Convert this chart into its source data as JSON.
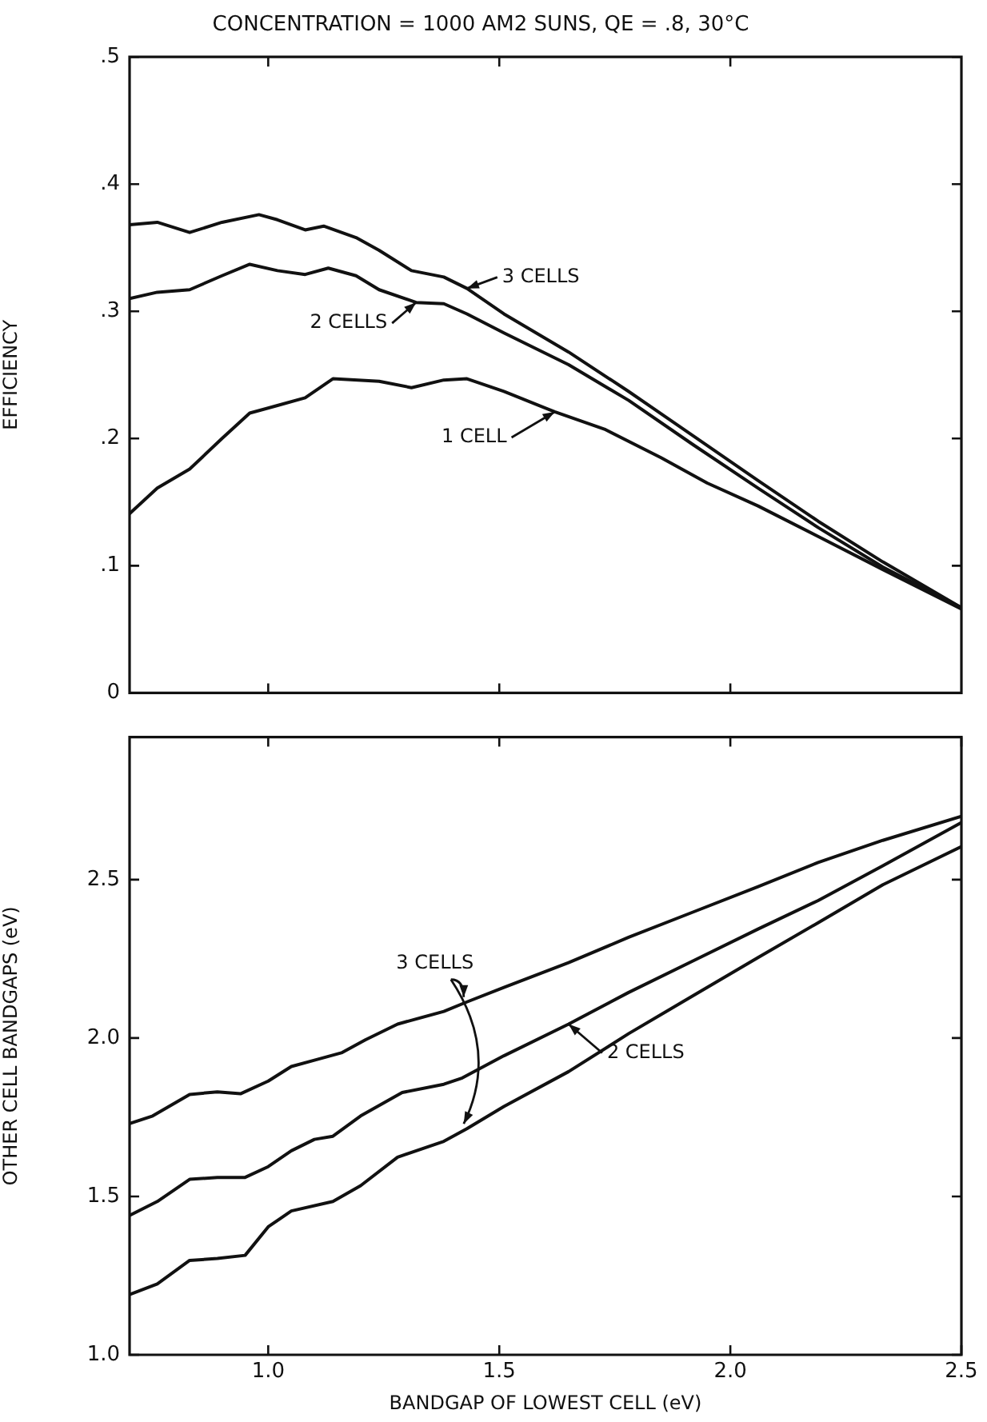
{
  "chart_data": [
    {
      "type": "line",
      "title": "CONCENTRATION = 1000 AM2 SUNS, QE = .8, 30°C",
      "ylabel": "EFFICIENCY",
      "xlim": [
        0.7,
        2.5
      ],
      "xticks": [
        1,
        1.5,
        2
      ],
      "ylim": [
        0,
        0.5
      ],
      "yticks": [
        {
          "value": 0,
          "label": "0"
        },
        {
          "value": 0.1,
          "label": ".1"
        },
        {
          "value": 0.2,
          "label": ".2"
        },
        {
          "value": 0.3,
          "label": ".3"
        },
        {
          "value": 0.4,
          "label": ".4"
        },
        {
          "value": 0.5,
          "label": ".5"
        }
      ],
      "tick_labels": "y",
      "grid": false,
      "legend": false,
      "marker": "none",
      "line_style": "solid",
      "annotations": [
        {
          "text": "3 CELLS",
          "x": 1.43,
          "y": 0.318
        },
        {
          "text": "2 CELLS",
          "x": 1.32,
          "y": 0.307
        },
        {
          "text": "1 CELL",
          "x": 1.62,
          "y": 0.221
        }
      ],
      "series": [
        {
          "color": "#111111",
          "x": [
            0.7,
            0.76,
            0.83,
            0.9,
            0.98,
            1.02,
            1.08,
            1.12,
            1.19,
            1.24,
            1.31,
            1.38,
            1.43,
            1.51,
            1.65,
            1.78,
            1.92,
            2.06,
            2.19,
            2.33,
            2.5
          ],
          "values": [
            0.368,
            0.37,
            0.362,
            0.37,
            0.376,
            0.372,
            0.364,
            0.367,
            0.358,
            0.348,
            0.332,
            0.327,
            0.318,
            0.298,
            0.268,
            0.237,
            0.202,
            0.167,
            0.135,
            0.103,
            0.067
          ]
        },
        {
          "color": "#111111",
          "x": [
            0.7,
            0.76,
            0.83,
            0.9,
            0.96,
            1.02,
            1.08,
            1.13,
            1.19,
            1.24,
            1.32,
            1.38,
            1.43,
            1.51,
            1.65,
            1.78,
            1.92,
            2.06,
            2.19,
            2.33,
            2.5
          ],
          "values": [
            0.31,
            0.315,
            0.317,
            0.328,
            0.337,
            0.332,
            0.329,
            0.334,
            0.328,
            0.317,
            0.307,
            0.306,
            0.298,
            0.283,
            0.258,
            0.23,
            0.195,
            0.161,
            0.13,
            0.099,
            0.067
          ]
        },
        {
          "color": "#111111",
          "x": [
            0.7,
            0.76,
            0.83,
            0.9,
            0.96,
            1.02,
            1.08,
            1.14,
            1.24,
            1.31,
            1.38,
            1.43,
            1.51,
            1.62,
            1.73,
            1.85,
            1.95,
            2.06,
            2.19,
            2.33,
            2.5
          ],
          "values": [
            0.141,
            0.161,
            0.176,
            0.2,
            0.22,
            0.226,
            0.232,
            0.247,
            0.245,
            0.24,
            0.246,
            0.247,
            0.237,
            0.221,
            0.207,
            0.185,
            0.165,
            0.147,
            0.123,
            0.097,
            0.066
          ]
        }
      ]
    },
    {
      "type": "line",
      "xlabel": "BANDGAP OF LOWEST CELL (eV)",
      "ylabel": "OTHER CELL BANDGAPS (eV)",
      "xlim": [
        0.7,
        2.5
      ],
      "xticks": [
        {
          "value": 1,
          "label": "1.0"
        },
        1.5,
        {
          "value": 2,
          "label": "2.0"
        },
        2.5
      ],
      "ylim": [
        1,
        2.95
      ],
      "yticks": [
        {
          "value": 1,
          "label": "1.0"
        },
        1.5,
        {
          "value": 2,
          "label": "2.0"
        },
        2.5
      ],
      "grid": false,
      "legend": false,
      "marker": "none",
      "line_style": "solid",
      "annotations": [
        {
          "text": "3 CELLS",
          "x": 1.43,
          "y": 2.114
        },
        {
          "text": "2 CELLS",
          "x": 1.65,
          "y": 2.044
        }
      ],
      "series": [
        {
          "color": "#111111",
          "x": [
            0.7,
            0.75,
            0.83,
            0.89,
            0.94,
            1.0,
            1.05,
            1.1,
            1.16,
            1.21,
            1.28,
            1.38,
            1.43,
            1.51,
            1.65,
            1.78,
            1.92,
            2.06,
            2.19,
            2.33,
            2.5
          ],
          "values": [
            1.73,
            1.754,
            1.822,
            1.83,
            1.824,
            1.864,
            1.91,
            1.93,
            1.954,
            1.994,
            2.044,
            2.084,
            2.114,
            2.16,
            2.238,
            2.318,
            2.398,
            2.478,
            2.554,
            2.624,
            2.7
          ]
        },
        {
          "color": "#111111",
          "x": [
            0.7,
            0.76,
            0.83,
            0.89,
            0.95,
            1.0,
            1.05,
            1.1,
            1.14,
            1.2,
            1.29,
            1.38,
            1.42,
            1.51,
            1.65,
            1.78,
            1.92,
            2.06,
            2.19,
            2.33,
            2.5
          ],
          "values": [
            1.44,
            1.484,
            1.554,
            1.56,
            1.56,
            1.594,
            1.644,
            1.68,
            1.69,
            1.754,
            1.828,
            1.854,
            1.874,
            1.944,
            2.044,
            2.144,
            2.244,
            2.344,
            2.434,
            2.544,
            2.68
          ]
        },
        {
          "color": "#111111",
          "x": [
            0.7,
            0.76,
            0.83,
            0.89,
            0.95,
            1.0,
            1.05,
            1.14,
            1.2,
            1.28,
            1.38,
            1.43,
            1.51,
            1.65,
            1.78,
            1.92,
            2.06,
            2.19,
            2.33,
            2.5
          ],
          "values": [
            1.19,
            1.224,
            1.298,
            1.304,
            1.314,
            1.404,
            1.454,
            1.484,
            1.534,
            1.624,
            1.674,
            1.714,
            1.784,
            1.894,
            2.014,
            2.134,
            2.254,
            2.364,
            2.484,
            2.604
          ]
        }
      ]
    }
  ]
}
